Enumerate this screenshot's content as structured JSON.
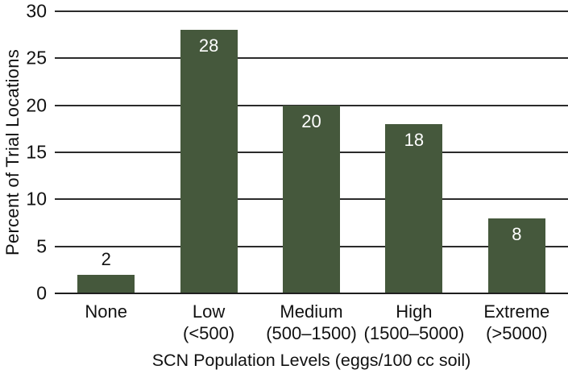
{
  "chart_data": {
    "type": "bar",
    "title": "",
    "xlabel": "SCN Population Levels (eggs/100 cc soil)",
    "ylabel": "Percent of Trial Locations",
    "categories": [
      {
        "name": "None",
        "range": ""
      },
      {
        "name": "Low",
        "range": "(<500)"
      },
      {
        "name": "Medium",
        "range": "(500–1500)"
      },
      {
        "name": "High",
        "range": "(1500–5000)"
      },
      {
        "name": "Extreme",
        "range": "(>5000)"
      }
    ],
    "values": [
      2,
      28,
      20,
      18,
      8
    ],
    "ylim": [
      0,
      30
    ],
    "yticks": [
      0,
      5,
      10,
      15,
      20,
      25,
      30
    ],
    "grid": true,
    "legend": "none",
    "colors": {
      "bar": "#45583c",
      "grid_line": "#2b2b2b",
      "axis_line": "#1f1f1f",
      "text": "#111111",
      "value_label_inside": "#ffffff",
      "value_label_outside": "#111111"
    }
  }
}
